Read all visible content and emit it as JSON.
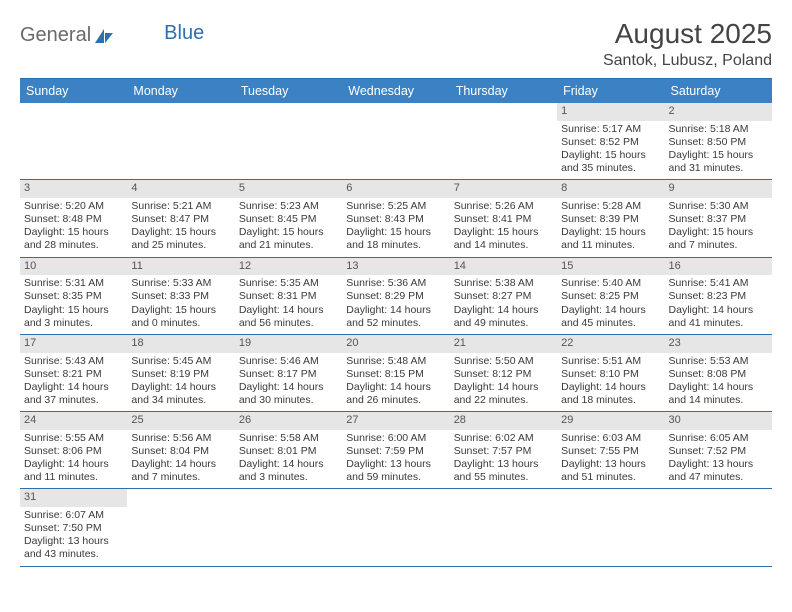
{
  "logo": {
    "part1": "General",
    "part2": "Blue"
  },
  "title": {
    "month": "August 2025",
    "location": "Santok, Lubusz, Poland"
  },
  "colors": {
    "header_bg": "#3b82c4",
    "border": "#2f6fab",
    "numrow_bg": "#e6e6e6",
    "text": "#3a3a3a"
  },
  "day_headers": [
    "Sunday",
    "Monday",
    "Tuesday",
    "Wednesday",
    "Thursday",
    "Friday",
    "Saturday"
  ],
  "weeks": [
    [
      null,
      null,
      null,
      null,
      null,
      {
        "n": "1",
        "sr": "5:17 AM",
        "ss": "8:52 PM",
        "dl": "15 hours and 35 minutes."
      },
      {
        "n": "2",
        "sr": "5:18 AM",
        "ss": "8:50 PM",
        "dl": "15 hours and 31 minutes."
      }
    ],
    [
      {
        "n": "3",
        "sr": "5:20 AM",
        "ss": "8:48 PM",
        "dl": "15 hours and 28 minutes."
      },
      {
        "n": "4",
        "sr": "5:21 AM",
        "ss": "8:47 PM",
        "dl": "15 hours and 25 minutes."
      },
      {
        "n": "5",
        "sr": "5:23 AM",
        "ss": "8:45 PM",
        "dl": "15 hours and 21 minutes."
      },
      {
        "n": "6",
        "sr": "5:25 AM",
        "ss": "8:43 PM",
        "dl": "15 hours and 18 minutes."
      },
      {
        "n": "7",
        "sr": "5:26 AM",
        "ss": "8:41 PM",
        "dl": "15 hours and 14 minutes."
      },
      {
        "n": "8",
        "sr": "5:28 AM",
        "ss": "8:39 PM",
        "dl": "15 hours and 11 minutes."
      },
      {
        "n": "9",
        "sr": "5:30 AM",
        "ss": "8:37 PM",
        "dl": "15 hours and 7 minutes."
      }
    ],
    [
      {
        "n": "10",
        "sr": "5:31 AM",
        "ss": "8:35 PM",
        "dl": "15 hours and 3 minutes."
      },
      {
        "n": "11",
        "sr": "5:33 AM",
        "ss": "8:33 PM",
        "dl": "15 hours and 0 minutes."
      },
      {
        "n": "12",
        "sr": "5:35 AM",
        "ss": "8:31 PM",
        "dl": "14 hours and 56 minutes."
      },
      {
        "n": "13",
        "sr": "5:36 AM",
        "ss": "8:29 PM",
        "dl": "14 hours and 52 minutes."
      },
      {
        "n": "14",
        "sr": "5:38 AM",
        "ss": "8:27 PM",
        "dl": "14 hours and 49 minutes."
      },
      {
        "n": "15",
        "sr": "5:40 AM",
        "ss": "8:25 PM",
        "dl": "14 hours and 45 minutes."
      },
      {
        "n": "16",
        "sr": "5:41 AM",
        "ss": "8:23 PM",
        "dl": "14 hours and 41 minutes."
      }
    ],
    [
      {
        "n": "17",
        "sr": "5:43 AM",
        "ss": "8:21 PM",
        "dl": "14 hours and 37 minutes."
      },
      {
        "n": "18",
        "sr": "5:45 AM",
        "ss": "8:19 PM",
        "dl": "14 hours and 34 minutes."
      },
      {
        "n": "19",
        "sr": "5:46 AM",
        "ss": "8:17 PM",
        "dl": "14 hours and 30 minutes."
      },
      {
        "n": "20",
        "sr": "5:48 AM",
        "ss": "8:15 PM",
        "dl": "14 hours and 26 minutes."
      },
      {
        "n": "21",
        "sr": "5:50 AM",
        "ss": "8:12 PM",
        "dl": "14 hours and 22 minutes."
      },
      {
        "n": "22",
        "sr": "5:51 AM",
        "ss": "8:10 PM",
        "dl": "14 hours and 18 minutes."
      },
      {
        "n": "23",
        "sr": "5:53 AM",
        "ss": "8:08 PM",
        "dl": "14 hours and 14 minutes."
      }
    ],
    [
      {
        "n": "24",
        "sr": "5:55 AM",
        "ss": "8:06 PM",
        "dl": "14 hours and 11 minutes."
      },
      {
        "n": "25",
        "sr": "5:56 AM",
        "ss": "8:04 PM",
        "dl": "14 hours and 7 minutes."
      },
      {
        "n": "26",
        "sr": "5:58 AM",
        "ss": "8:01 PM",
        "dl": "14 hours and 3 minutes."
      },
      {
        "n": "27",
        "sr": "6:00 AM",
        "ss": "7:59 PM",
        "dl": "13 hours and 59 minutes."
      },
      {
        "n": "28",
        "sr": "6:02 AM",
        "ss": "7:57 PM",
        "dl": "13 hours and 55 minutes."
      },
      {
        "n": "29",
        "sr": "6:03 AM",
        "ss": "7:55 PM",
        "dl": "13 hours and 51 minutes."
      },
      {
        "n": "30",
        "sr": "6:05 AM",
        "ss": "7:52 PM",
        "dl": "13 hours and 47 minutes."
      }
    ],
    [
      {
        "n": "31",
        "sr": "6:07 AM",
        "ss": "7:50 PM",
        "dl": "13 hours and 43 minutes."
      },
      null,
      null,
      null,
      null,
      null,
      null
    ]
  ],
  "labels": {
    "sunrise": "Sunrise:",
    "sunset": "Sunset:",
    "daylight": "Daylight:"
  }
}
